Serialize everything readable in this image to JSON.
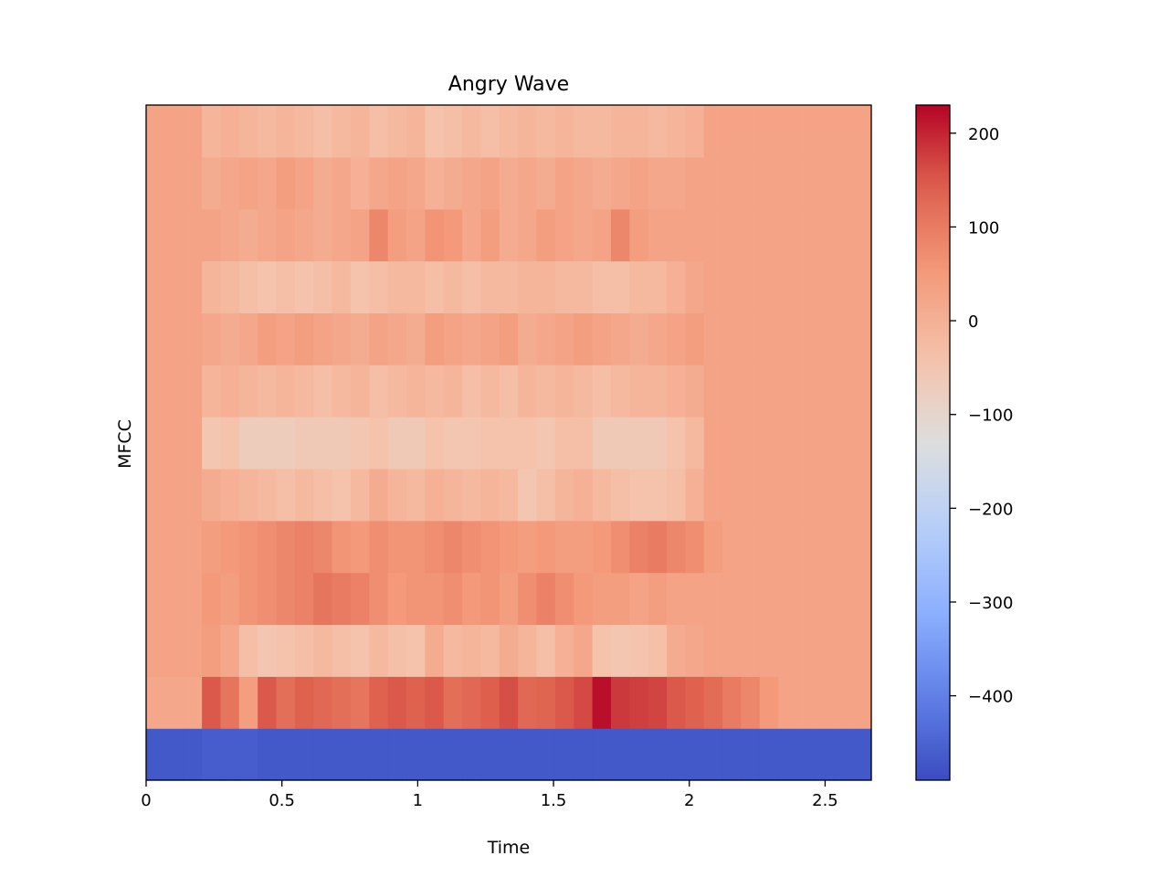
{
  "chart_data": {
    "type": "heatmap",
    "title": "Angry Wave",
    "xlabel": "Time",
    "ylabel": "MFCC",
    "xlim": [
      0,
      2.67
    ],
    "x_ticks": [
      {
        "value": 0,
        "label": "0"
      },
      {
        "value": 0.5,
        "label": "0.5"
      },
      {
        "value": 1,
        "label": "1"
      },
      {
        "value": 1.5,
        "label": "1.5"
      },
      {
        "value": 2,
        "label": "2"
      },
      {
        "value": 2.5,
        "label": "2.5"
      }
    ],
    "n_coefficients": 13,
    "n_frames": 39,
    "colormap": "coolwarm",
    "colorbar": {
      "vmin": -490,
      "vmax": 230,
      "ticks": [
        {
          "value": 200,
          "label": "200"
        },
        {
          "value": 100,
          "label": "100"
        },
        {
          "value": 0,
          "label": "0"
        },
        {
          "value": -100,
          "label": "−100"
        },
        {
          "value": -200,
          "label": "−200"
        },
        {
          "value": -300,
          "label": "−300"
        },
        {
          "value": -400,
          "label": "−400"
        }
      ]
    },
    "values": [
      [
        -470,
        -470,
        -470,
        -460,
        -460,
        -460,
        -470,
        -470,
        -470,
        -470,
        -470,
        -470,
        -470,
        -470,
        -470,
        -470,
        -470,
        -470,
        -470,
        -470,
        -470,
        -470,
        -470,
        -470,
        -470,
        -470,
        -470,
        -470,
        -470,
        -470,
        -470,
        -470,
        -470,
        -470,
        -470,
        -470,
        -470,
        -470,
        -470
      ],
      [
        20,
        20,
        20,
        150,
        110,
        40,
        150,
        120,
        140,
        130,
        120,
        110,
        140,
        150,
        140,
        150,
        120,
        130,
        145,
        160,
        130,
        135,
        150,
        165,
        220,
        180,
        175,
        170,
        150,
        140,
        125,
        100,
        80,
        50,
        30,
        30,
        30,
        30,
        30
      ],
      [
        30,
        30,
        30,
        40,
        20,
        -30,
        -50,
        -40,
        -30,
        -20,
        -30,
        -40,
        -20,
        -35,
        -40,
        10,
        -20,
        -10,
        -20,
        10,
        -10,
        -30,
        0,
        20,
        -40,
        -50,
        -45,
        -35,
        10,
        20,
        30,
        30,
        30,
        30,
        30,
        30,
        30,
        30,
        30
      ],
      [
        30,
        30,
        30,
        50,
        40,
        60,
        70,
        80,
        90,
        110,
        100,
        90,
        70,
        50,
        60,
        60,
        70,
        50,
        60,
        40,
        70,
        90,
        70,
        50,
        40,
        40,
        30,
        40,
        30,
        30,
        30,
        30,
        30,
        30,
        30,
        30,
        30,
        30,
        30
      ],
      [
        30,
        30,
        30,
        40,
        50,
        60,
        70,
        80,
        90,
        80,
        60,
        50,
        70,
        60,
        60,
        70,
        80,
        70,
        60,
        50,
        40,
        50,
        40,
        40,
        50,
        70,
        90,
        100,
        80,
        70,
        40,
        30,
        30,
        30,
        30,
        30,
        30,
        30,
        30
      ],
      [
        30,
        30,
        30,
        10,
        0,
        -10,
        -20,
        -30,
        -20,
        -30,
        -40,
        -20,
        10,
        -10,
        -20,
        0,
        -10,
        -20,
        -10,
        -20,
        -50,
        -30,
        -10,
        0,
        -20,
        -30,
        -40,
        -40,
        -30,
        0,
        30,
        30,
        30,
        30,
        30,
        30,
        30,
        30,
        30
      ],
      [
        30,
        30,
        30,
        -50,
        -40,
        -70,
        -70,
        -70,
        -60,
        -60,
        -60,
        -50,
        -40,
        -60,
        -60,
        -40,
        -50,
        -50,
        -40,
        -40,
        -40,
        -50,
        -30,
        -30,
        -60,
        -60,
        -60,
        -60,
        -40,
        -20,
        30,
        30,
        30,
        30,
        30,
        30,
        30,
        30,
        30
      ],
      [
        30,
        30,
        30,
        -10,
        0,
        -10,
        -20,
        -10,
        -20,
        -30,
        -20,
        -10,
        -30,
        -20,
        -10,
        -20,
        -10,
        -30,
        -20,
        -30,
        -10,
        -20,
        -10,
        -20,
        -30,
        -20,
        -10,
        -10,
        0,
        10,
        30,
        30,
        30,
        30,
        30,
        30,
        30,
        30,
        30
      ],
      [
        30,
        30,
        30,
        20,
        10,
        20,
        40,
        30,
        40,
        30,
        20,
        10,
        30,
        20,
        10,
        40,
        30,
        20,
        30,
        40,
        10,
        20,
        30,
        40,
        30,
        20,
        10,
        20,
        30,
        40,
        30,
        30,
        30,
        30,
        30,
        30,
        30,
        30,
        30
      ],
      [
        30,
        30,
        30,
        -10,
        -20,
        -30,
        -40,
        -30,
        -40,
        -30,
        -20,
        -40,
        -30,
        -20,
        -20,
        -30,
        -20,
        -30,
        -20,
        -20,
        -10,
        -10,
        -20,
        -20,
        -30,
        -30,
        -20,
        -20,
        0,
        20,
        30,
        30,
        30,
        30,
        30,
        30,
        30,
        30,
        30
      ],
      [
        30,
        30,
        30,
        30,
        20,
        10,
        20,
        30,
        20,
        10,
        20,
        30,
        80,
        40,
        30,
        60,
        50,
        20,
        40,
        10,
        20,
        40,
        30,
        20,
        30,
        80,
        40,
        30,
        30,
        30,
        30,
        30,
        30,
        30,
        30,
        30,
        30,
        30,
        30
      ],
      [
        30,
        30,
        30,
        10,
        20,
        30,
        20,
        40,
        30,
        10,
        20,
        0,
        20,
        30,
        20,
        0,
        10,
        20,
        30,
        10,
        20,
        10,
        30,
        20,
        10,
        20,
        30,
        20,
        20,
        30,
        30,
        30,
        30,
        30,
        30,
        30,
        30,
        30,
        30
      ],
      [
        30,
        30,
        30,
        -10,
        0,
        -10,
        -20,
        -10,
        -20,
        -30,
        -20,
        -10,
        -30,
        -20,
        -10,
        -40,
        -30,
        -20,
        -30,
        -20,
        -10,
        -20,
        -10,
        -20,
        -20,
        -10,
        -10,
        -20,
        -10,
        0,
        30,
        30,
        30,
        30,
        30,
        30,
        30,
        30,
        30
      ]
    ]
  }
}
